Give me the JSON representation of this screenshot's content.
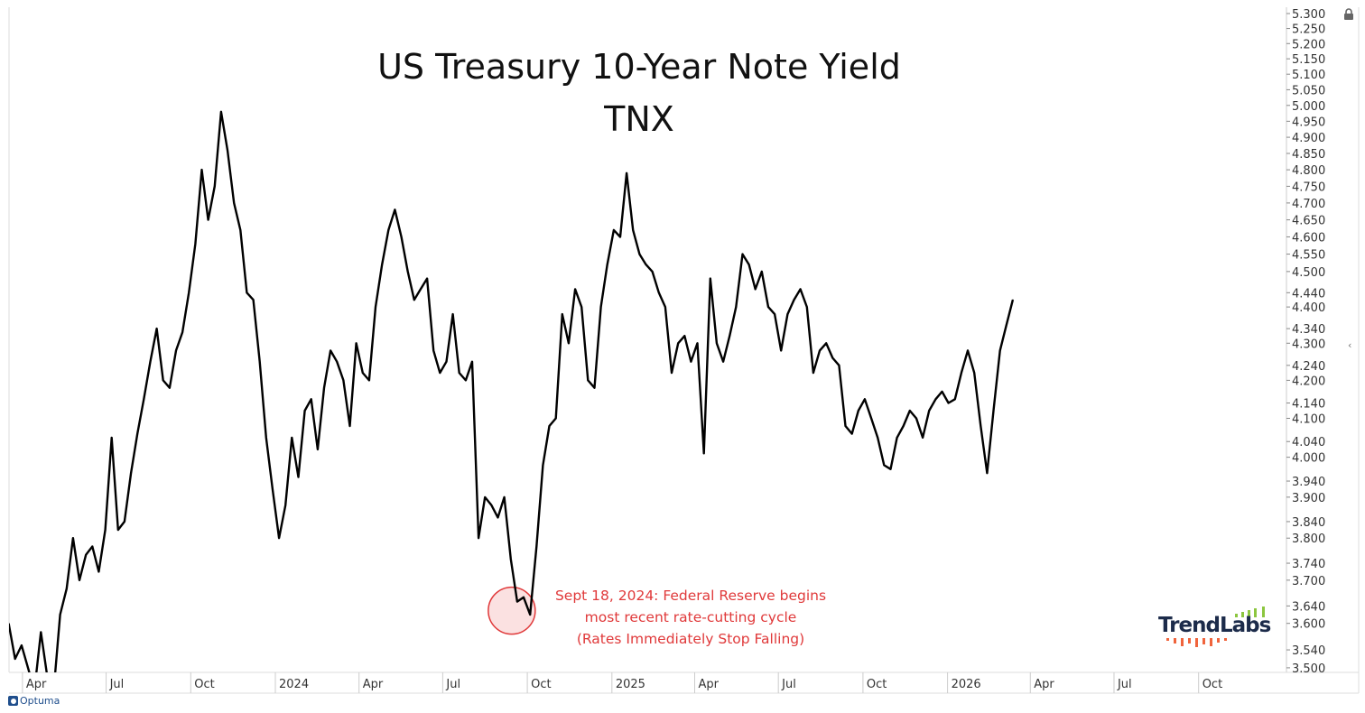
{
  "chart_data": {
    "type": "line",
    "title": "US Treasury 10-Year Note Yield",
    "subtitle": "TNX",
    "xlabel": "",
    "ylabel": "",
    "y_scale": "log",
    "ylim": [
      3.5,
      5.3
    ],
    "grid": false,
    "series": [
      {
        "name": "TNX",
        "color": "#000000",
        "start_date": "2023-03-17",
        "step_days": 7,
        "values": [
          3.6,
          3.52,
          3.55,
          3.5,
          3.45,
          3.58,
          3.48,
          3.45,
          3.62,
          3.68,
          3.8,
          3.7,
          3.76,
          3.78,
          3.72,
          3.82,
          4.05,
          3.82,
          3.84,
          3.96,
          4.06,
          4.15,
          4.25,
          4.34,
          4.2,
          4.18,
          4.28,
          4.33,
          4.44,
          4.58,
          4.8,
          4.65,
          4.75,
          4.98,
          4.86,
          4.7,
          4.62,
          4.44,
          4.42,
          4.25,
          4.05,
          3.92,
          3.8,
          3.88,
          4.05,
          3.95,
          4.12,
          4.15,
          4.02,
          4.18,
          4.28,
          4.25,
          4.2,
          4.08,
          4.3,
          4.22,
          4.2,
          4.4,
          4.52,
          4.62,
          4.68,
          4.6,
          4.5,
          4.42,
          4.45,
          4.48,
          4.28,
          4.22,
          4.25,
          4.38,
          4.22,
          4.2,
          4.25,
          3.8,
          3.9,
          3.88,
          3.85,
          3.9,
          3.75,
          3.65,
          3.66,
          3.62,
          3.78,
          3.98,
          4.08,
          4.1,
          4.38,
          4.3,
          4.45,
          4.4,
          4.2,
          4.18,
          4.4,
          4.52,
          4.62,
          4.6,
          4.79,
          4.62,
          4.55,
          4.52,
          4.5,
          4.44,
          4.4,
          4.22,
          4.3,
          4.32,
          4.25,
          4.3,
          4.01,
          4.48,
          4.3,
          4.25,
          4.32,
          4.4,
          4.55,
          4.52,
          4.45,
          4.5,
          4.4,
          4.38,
          4.28,
          4.38,
          4.42,
          4.45,
          4.4,
          4.22,
          4.28,
          4.3,
          4.26,
          4.24,
          4.08,
          4.06,
          4.12,
          4.15,
          4.1,
          4.05,
          3.98,
          3.97,
          4.05,
          4.08,
          4.12,
          4.1,
          4.05,
          4.12,
          4.15,
          4.17,
          4.14,
          4.15,
          4.22,
          4.28,
          4.22,
          4.08,
          3.96,
          4.12,
          4.28,
          4.35,
          4.42
        ]
      }
    ],
    "y_ticks": [
      "5.300",
      "5.250",
      "5.200",
      "5.150",
      "5.100",
      "5.050",
      "5.000",
      "4.950",
      "4.900",
      "4.850",
      "4.800",
      "4.750",
      "4.700",
      "4.650",
      "4.600",
      "4.550",
      "4.500",
      "4.440",
      "4.400",
      "4.340",
      "4.300",
      "4.240",
      "4.200",
      "4.140",
      "4.100",
      "4.040",
      "4.000",
      "3.940",
      "3.900",
      "3.840",
      "3.800",
      "3.740",
      "3.700",
      "3.640",
      "3.600",
      "3.540",
      "3.500"
    ],
    "x_ticks": [
      {
        "label": "Apr",
        "date": "2023-04-01"
      },
      {
        "label": "Jul",
        "date": "2023-07-01"
      },
      {
        "label": "Oct",
        "date": "2023-10-01"
      },
      {
        "label": "2024",
        "date": "2024-01-01"
      },
      {
        "label": "Apr",
        "date": "2024-04-01"
      },
      {
        "label": "Jul",
        "date": "2024-07-01"
      },
      {
        "label": "Oct",
        "date": "2024-10-01"
      },
      {
        "label": "2025",
        "date": "2025-01-01"
      },
      {
        "label": "Apr",
        "date": "2025-04-01"
      },
      {
        "label": "Jul",
        "date": "2025-07-01"
      },
      {
        "label": "Oct",
        "date": "2025-10-01"
      },
      {
        "label": "2026",
        "date": "2026-01-01"
      },
      {
        "label": "Apr",
        "date": "2026-04-01"
      },
      {
        "label": "Jul",
        "date": "2026-07-01"
      },
      {
        "label": "Oct",
        "date": "2026-10-01"
      }
    ],
    "annotation": {
      "date": "2024-09-18",
      "value": 3.65,
      "lines": [
        "Sept 18, 2024: Federal Reserve begins",
        "most recent rate-cutting cycle",
        "(Rates Immediately Stop Falling)"
      ],
      "color": "#e0393a"
    }
  },
  "branding": {
    "platform": "Optuma",
    "logo": "TrendLabs"
  }
}
